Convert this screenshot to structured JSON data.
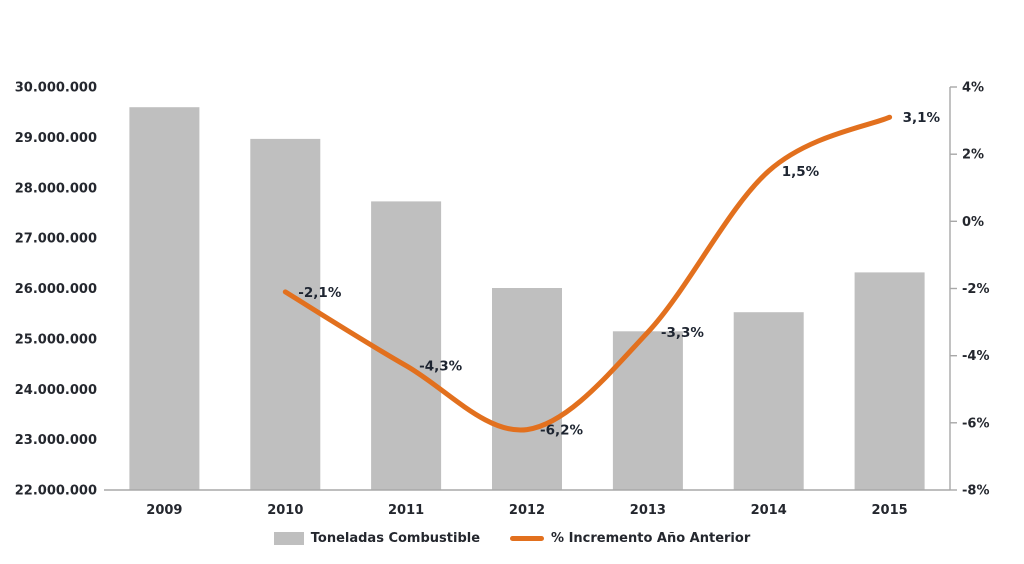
{
  "chart_data": {
    "type": "combo-bar-line",
    "title": "",
    "categories": [
      "2009",
      "2010",
      "2011",
      "2012",
      "2013",
      "2014",
      "2015"
    ],
    "series": [
      {
        "name": "Toneladas Combustible",
        "type": "bar",
        "axis": "left",
        "color": "#BFBFBF",
        "values": [
          29600000,
          28970000,
          27730000,
          26010000,
          25150000,
          25530000,
          26320000
        ]
      },
      {
        "name": "% Incremento Año Anterior",
        "type": "line",
        "axis": "right",
        "color": "#E2701E",
        "values": [
          null,
          -2.1,
          -4.3,
          -6.2,
          -3.3,
          1.5,
          3.1
        ],
        "point_labels": [
          null,
          "-2,1%",
          "-4,3%",
          "-6,2%",
          "-3,3%",
          "1,5%",
          "3,1%"
        ]
      }
    ],
    "left_axis": {
      "min": 22000000,
      "max": 30000000,
      "step": 1000000,
      "tick_labels": [
        "30.000.000",
        "29.000.000",
        "28.000.000",
        "27.000.000",
        "26.000.000",
        "25.000.000",
        "24.000.000",
        "23.000.000",
        "22.000.000"
      ]
    },
    "right_axis": {
      "min": -8,
      "max": 4,
      "step": 2,
      "tick_labels": [
        "4%",
        "2%",
        "0%",
        "-2%",
        "-4%",
        "-6%",
        "-8%"
      ]
    },
    "grid": false,
    "legend_position": "bottom"
  },
  "colors": {
    "bar": "#BFBFBF",
    "line": "#E2701E",
    "axis": "#A8A8A8",
    "text": "#24272e"
  }
}
